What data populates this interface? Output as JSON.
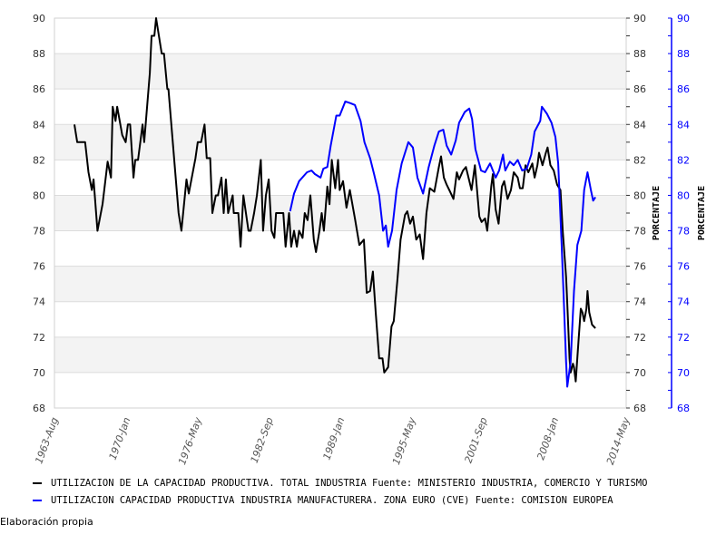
{
  "chart_data": {
    "type": "line",
    "title": "",
    "xlabel": "",
    "ylabel_left": "",
    "ylabel_right": "PORCENTAJE",
    "ylabel_right2": "PORCENTAJE",
    "ylim": [
      68,
      90
    ],
    "yticks": [
      "68",
      "70",
      "72",
      "74",
      "76",
      "78",
      "80",
      "82",
      "84",
      "86",
      "88",
      "90"
    ],
    "xlim": [
      1963.58,
      2014.33
    ],
    "xticks": [
      {
        "label": "1963-Aug",
        "x": 1963.58
      },
      {
        "label": "1970-Jan",
        "x": 1970.0
      },
      {
        "label": "1976-May",
        "x": 1976.33
      },
      {
        "label": "1982-Sep",
        "x": 1982.67
      },
      {
        "label": "1989-Jan",
        "x": 1989.0
      },
      {
        "label": "1995-May",
        "x": 1995.33
      },
      {
        "label": "2001-Sep",
        "x": 2001.67
      },
      {
        "label": "2008-Jan",
        "x": 2008.0
      },
      {
        "label": "2014-May",
        "x": 2014.33
      }
    ],
    "grid": "horizontal alternating bands",
    "series": [
      {
        "name": "UTILIZACION DE LA CAPACIDAD PRODUCTIVA. TOTAL INDUSTRIA  Fuente: MINISTERIO INDUSTRIA, COMERCIO Y TURISMO",
        "color": "#000000",
        "axis": "right",
        "points": [
          [
            1965.35,
            84.0
          ],
          [
            1965.6,
            83.0
          ],
          [
            1966.3,
            83.0
          ],
          [
            1966.6,
            81.3
          ],
          [
            1966.9,
            80.3
          ],
          [
            1967.05,
            80.9
          ],
          [
            1967.4,
            78.0
          ],
          [
            1967.85,
            79.5
          ],
          [
            1968.3,
            81.9
          ],
          [
            1968.6,
            81.0
          ],
          [
            1968.75,
            85.0
          ],
          [
            1969.0,
            84.2
          ],
          [
            1969.15,
            85.0
          ],
          [
            1969.6,
            83.4
          ],
          [
            1969.9,
            83.0
          ],
          [
            1970.1,
            84.0
          ],
          [
            1970.3,
            84.0
          ],
          [
            1970.6,
            81.0
          ],
          [
            1970.75,
            82.0
          ],
          [
            1971.0,
            82.0
          ],
          [
            1971.4,
            84.0
          ],
          [
            1971.55,
            83.0
          ],
          [
            1972.05,
            86.9
          ],
          [
            1972.2,
            89.0
          ],
          [
            1972.45,
            89.0
          ],
          [
            1972.6,
            90.0
          ],
          [
            1973.1,
            88.0
          ],
          [
            1973.3,
            88.0
          ],
          [
            1973.6,
            86.0
          ],
          [
            1973.7,
            86.0
          ],
          [
            1974.6,
            79.0
          ],
          [
            1974.85,
            78.0
          ],
          [
            1975.3,
            80.9
          ],
          [
            1975.5,
            80.1
          ],
          [
            1976.1,
            82.1
          ],
          [
            1976.3,
            83.0
          ],
          [
            1976.6,
            83.0
          ],
          [
            1976.9,
            84.0
          ],
          [
            1977.1,
            82.1
          ],
          [
            1977.4,
            82.1
          ],
          [
            1977.6,
            79.0
          ],
          [
            1977.9,
            80.0
          ],
          [
            1978.1,
            80.0
          ],
          [
            1978.4,
            81.0
          ],
          [
            1978.6,
            79.0
          ],
          [
            1978.8,
            80.9
          ],
          [
            1979.0,
            79.0
          ],
          [
            1979.4,
            80.0
          ],
          [
            1979.5,
            79.0
          ],
          [
            1979.9,
            79.0
          ],
          [
            1980.1,
            77.1
          ],
          [
            1980.35,
            80.0
          ],
          [
            1980.8,
            78.0
          ],
          [
            1981.0,
            78.0
          ],
          [
            1981.3,
            79.0
          ],
          [
            1981.55,
            80.0
          ],
          [
            1981.9,
            82.0
          ],
          [
            1982.1,
            78.0
          ],
          [
            1982.35,
            80.0
          ],
          [
            1982.6,
            80.9
          ],
          [
            1982.85,
            78.0
          ],
          [
            1983.1,
            77.6
          ],
          [
            1983.25,
            79.0
          ],
          [
            1983.9,
            79.0
          ],
          [
            1984.1,
            77.1
          ],
          [
            1984.4,
            79.0
          ],
          [
            1984.6,
            77.1
          ],
          [
            1984.85,
            78.0
          ],
          [
            1985.1,
            77.1
          ],
          [
            1985.3,
            78.0
          ],
          [
            1985.6,
            77.6
          ],
          [
            1985.8,
            79.0
          ],
          [
            1986.05,
            78.6
          ],
          [
            1986.3,
            80.0
          ],
          [
            1986.6,
            77.5
          ],
          [
            1986.8,
            76.8
          ],
          [
            1987.1,
            78.0
          ],
          [
            1987.3,
            79.0
          ],
          [
            1987.5,
            78.0
          ],
          [
            1987.8,
            80.5
          ],
          [
            1988.0,
            79.5
          ],
          [
            1988.2,
            82.0
          ],
          [
            1988.5,
            80.4
          ],
          [
            1988.75,
            82.0
          ],
          [
            1988.9,
            80.3
          ],
          [
            1989.2,
            80.8
          ],
          [
            1989.5,
            79.3
          ],
          [
            1989.8,
            80.3
          ],
          [
            1990.25,
            78.7
          ],
          [
            1990.65,
            77.2
          ],
          [
            1991.05,
            77.5
          ],
          [
            1991.3,
            74.5
          ],
          [
            1991.6,
            74.6
          ],
          [
            1991.85,
            75.7
          ],
          [
            1992.1,
            73.4
          ],
          [
            1992.4,
            70.8
          ],
          [
            1992.7,
            70.8
          ],
          [
            1992.85,
            70.0
          ],
          [
            1993.2,
            70.3
          ],
          [
            1993.5,
            72.6
          ],
          [
            1993.7,
            72.9
          ],
          [
            1994.05,
            75.4
          ],
          [
            1994.3,
            77.5
          ],
          [
            1994.7,
            78.9
          ],
          [
            1994.9,
            79.1
          ],
          [
            1995.15,
            78.4
          ],
          [
            1995.4,
            78.8
          ],
          [
            1995.7,
            77.5
          ],
          [
            1996.0,
            77.8
          ],
          [
            1996.3,
            76.4
          ],
          [
            1996.6,
            79.0
          ],
          [
            1996.9,
            80.4
          ],
          [
            1997.3,
            80.2
          ],
          [
            1997.7,
            81.6
          ],
          [
            1997.9,
            82.2
          ],
          [
            1998.15,
            81.0
          ],
          [
            1998.4,
            80.6
          ],
          [
            1998.7,
            80.2
          ],
          [
            1999.0,
            79.8
          ],
          [
            1999.3,
            81.3
          ],
          [
            1999.5,
            80.9
          ],
          [
            1999.85,
            81.4
          ],
          [
            2000.1,
            81.6
          ],
          [
            2000.3,
            81.1
          ],
          [
            2000.6,
            80.3
          ],
          [
            2000.9,
            81.7
          ],
          [
            2001.3,
            78.8
          ],
          [
            2001.5,
            78.5
          ],
          [
            2001.8,
            78.7
          ],
          [
            2002.0,
            78.0
          ],
          [
            2002.35,
            80.5
          ],
          [
            2002.5,
            81.2
          ],
          [
            2002.75,
            79.2
          ],
          [
            2003.0,
            78.4
          ],
          [
            2003.3,
            80.5
          ],
          [
            2003.5,
            80.8
          ],
          [
            2003.8,
            79.8
          ],
          [
            2004.1,
            80.3
          ],
          [
            2004.35,
            81.3
          ],
          [
            2004.7,
            81.0
          ],
          [
            2004.9,
            80.4
          ],
          [
            2005.15,
            80.4
          ],
          [
            2005.4,
            81.7
          ],
          [
            2005.65,
            81.3
          ],
          [
            2006.0,
            81.8
          ],
          [
            2006.2,
            81.0
          ],
          [
            2006.45,
            81.7
          ],
          [
            2006.6,
            82.4
          ],
          [
            2006.9,
            81.7
          ],
          [
            2007.2,
            82.4
          ],
          [
            2007.35,
            82.7
          ],
          [
            2007.6,
            81.7
          ],
          [
            2007.9,
            81.4
          ],
          [
            2008.2,
            80.6
          ],
          [
            2008.5,
            80.3
          ],
          [
            2008.7,
            78.0
          ],
          [
            2009.0,
            75.4
          ],
          [
            2009.1,
            73.9
          ],
          [
            2009.3,
            70.8
          ],
          [
            2009.4,
            70.0
          ],
          [
            2009.6,
            70.5
          ],
          [
            2009.7,
            70.3
          ],
          [
            2009.85,
            69.5
          ],
          [
            2010.1,
            71.8
          ],
          [
            2010.3,
            73.6
          ],
          [
            2010.45,
            73.4
          ],
          [
            2010.6,
            72.9
          ],
          [
            2010.8,
            73.6
          ],
          [
            2010.9,
            74.6
          ],
          [
            2011.05,
            73.4
          ],
          [
            2011.3,
            72.7
          ],
          [
            2011.6,
            72.5
          ]
        ]
      },
      {
        "name": "UTILIZACION CAPACIDAD PRODUCTIVA INDUSTRIA MANUFACTURERA. ZONA EURO (CVE)  Fuente: COMISION EUROPEA",
        "color": "#0000ff",
        "axis": "right2",
        "points": [
          [
            1984.5,
            79.1
          ],
          [
            1984.85,
            80.1
          ],
          [
            1985.3,
            80.8
          ],
          [
            1986.0,
            81.3
          ],
          [
            1986.4,
            81.4
          ],
          [
            1986.7,
            81.2
          ],
          [
            1987.2,
            81.0
          ],
          [
            1987.45,
            81.5
          ],
          [
            1987.8,
            81.6
          ],
          [
            1988.1,
            82.8
          ],
          [
            1988.6,
            84.5
          ],
          [
            1988.9,
            84.5
          ],
          [
            1989.4,
            85.3
          ],
          [
            1989.85,
            85.2
          ],
          [
            1990.25,
            85.1
          ],
          [
            1990.75,
            84.2
          ],
          [
            1991.1,
            83.0
          ],
          [
            1991.6,
            82.1
          ],
          [
            1991.95,
            81.2
          ],
          [
            1992.4,
            80.0
          ],
          [
            1992.75,
            78.0
          ],
          [
            1993.0,
            78.3
          ],
          [
            1993.2,
            77.1
          ],
          [
            1993.55,
            78.0
          ],
          [
            1993.95,
            80.3
          ],
          [
            1994.4,
            81.8
          ],
          [
            1995.0,
            83.0
          ],
          [
            1995.4,
            82.7
          ],
          [
            1995.8,
            81.0
          ],
          [
            1996.3,
            80.1
          ],
          [
            1996.8,
            81.6
          ],
          [
            1997.3,
            82.8
          ],
          [
            1997.7,
            83.6
          ],
          [
            1998.1,
            83.7
          ],
          [
            1998.4,
            82.8
          ],
          [
            1998.8,
            82.3
          ],
          [
            1999.2,
            83.1
          ],
          [
            1999.5,
            84.1
          ],
          [
            2000.0,
            84.7
          ],
          [
            2000.4,
            84.9
          ],
          [
            2000.65,
            84.3
          ],
          [
            2000.95,
            82.6
          ],
          [
            2001.45,
            81.4
          ],
          [
            2001.8,
            81.3
          ],
          [
            2002.25,
            81.8
          ],
          [
            2002.75,
            81.0
          ],
          [
            2003.05,
            81.4
          ],
          [
            2003.4,
            82.3
          ],
          [
            2003.6,
            81.4
          ],
          [
            2004.0,
            81.9
          ],
          [
            2004.35,
            81.7
          ],
          [
            2004.7,
            82.0
          ],
          [
            2005.1,
            81.4
          ],
          [
            2005.5,
            81.5
          ],
          [
            2005.9,
            82.3
          ],
          [
            2006.2,
            83.6
          ],
          [
            2006.7,
            84.2
          ],
          [
            2006.85,
            85.0
          ],
          [
            2007.3,
            84.6
          ],
          [
            2007.7,
            84.1
          ],
          [
            2008.05,
            83.3
          ],
          [
            2008.3,
            81.8
          ],
          [
            2008.6,
            77.2
          ],
          [
            2008.8,
            73.9
          ],
          [
            2009.0,
            70.6
          ],
          [
            2009.1,
            69.2
          ],
          [
            2009.4,
            70.6
          ],
          [
            2009.7,
            74.6
          ],
          [
            2010.0,
            77.2
          ],
          [
            2010.35,
            78.0
          ],
          [
            2010.6,
            80.3
          ],
          [
            2010.9,
            81.3
          ],
          [
            2011.2,
            80.3
          ],
          [
            2011.4,
            79.7
          ],
          [
            2011.6,
            79.9
          ]
        ]
      }
    ],
    "legend_placement": "bottom"
  },
  "legend": [
    {
      "label": "UTILIZACION DE LA CAPACIDAD PRODUCTIVA. TOTAL INDUSTRIA  Fuente: MINISTERIO INDUSTRIA, COMERCIO Y TURISMO",
      "color": "#000000"
    },
    {
      "label": "UTILIZACION CAPACIDAD PRODUCTIVA INDUSTRIA MANUFACTURERA. ZONA EURO (CVE)  Fuente: COMISION EUROPEA",
      "color": "#0000ff"
    }
  ],
  "footer": "Elaboración propia"
}
